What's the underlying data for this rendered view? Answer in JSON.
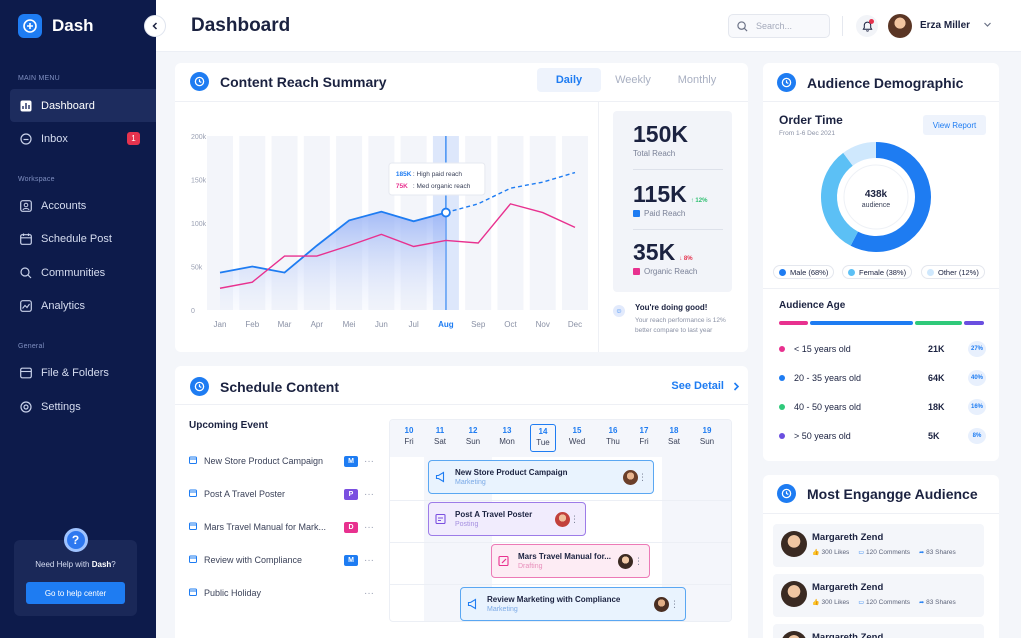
{
  "app": {
    "name": "Dash"
  },
  "sidebar": {
    "sections": [
      "MAIN MENU",
      "Workspace",
      "General"
    ],
    "items": [
      {
        "label": "Dashboard",
        "icon": "dashboard-icon",
        "active": true
      },
      {
        "label": "Inbox",
        "icon": "inbox-icon",
        "badge": "1"
      },
      {
        "label": "Accounts",
        "icon": "accounts-icon"
      },
      {
        "label": "Schedule Post",
        "icon": "calendar-icon"
      },
      {
        "label": "Communities",
        "icon": "search-icon"
      },
      {
        "label": "Analytics",
        "icon": "analytics-icon"
      },
      {
        "label": "File & Folders",
        "icon": "folder-icon"
      },
      {
        "label": "Settings",
        "icon": "settings-icon"
      }
    ],
    "help": {
      "text_prefix": "Need Help with ",
      "text_brand": "Dash",
      "text_suffix": "?",
      "button": "Go to help center"
    }
  },
  "header": {
    "title": "Dashboard",
    "search_placeholder": "Search...",
    "user_name": "Erza Miller"
  },
  "reach": {
    "title": "Content Reach Summary",
    "tabs": [
      "Daily",
      "Weekly",
      "Monthly"
    ],
    "active_tab": "Daily",
    "stats": [
      {
        "value": "150K",
        "label": "Total Reach"
      },
      {
        "value": "115K",
        "change": "12%",
        "direction": "up",
        "label": "Paid Reach",
        "color": "#1e7cf2"
      },
      {
        "value": "35K",
        "change": "8%",
        "direction": "down",
        "label": "Organic Reach",
        "color": "#e8318f"
      }
    ],
    "message": {
      "title": "You're doing good!",
      "text": "Your reach performance is 12% better compare to last year"
    },
    "tooltip": [
      {
        "value": "185K",
        "label": ": High paid reach"
      },
      {
        "value": "75K",
        "label": ": Med organic reach"
      }
    ]
  },
  "chart_data": {
    "type": "line",
    "x": [
      "Jan",
      "Feb",
      "Mar",
      "Apr",
      "Mei",
      "Jun",
      "Jul",
      "Aug",
      "Sep",
      "Oct",
      "Nov",
      "Dec"
    ],
    "ylim": [
      0,
      200
    ],
    "yticks": [
      "0",
      "50k",
      "100k",
      "150k",
      "200k"
    ],
    "highlight": "Aug",
    "series": [
      {
        "values": [
          43,
          50,
          43,
          74,
          103,
          113,
          102,
          112,
          122,
          140,
          147,
          158
        ],
        "projected_from": 7,
        "color": "#1e7cf2"
      },
      {
        "values": [
          25,
          32,
          62,
          62,
          74,
          87,
          73,
          80,
          77,
          122,
          112,
          95
        ],
        "color": "#e8318f"
      }
    ]
  },
  "schedule": {
    "title": "Schedule Content",
    "see_detail": "See Detail",
    "upcoming_title": "Upcoming Event",
    "events": [
      {
        "name": "New Store Product Campaign",
        "badge": "M",
        "color": "#1e7cf2"
      },
      {
        "name": "Post A Travel Poster",
        "badge": "P",
        "color": "#7a4fe0"
      },
      {
        "name": "Mars Travel Manual for Mark...",
        "badge": "D",
        "color": "#e8318f"
      },
      {
        "name": "Review with Compliance",
        "badge": "M",
        "color": "#1e7cf2"
      },
      {
        "name": "Public Holiday",
        "badge": "",
        "color": ""
      }
    ],
    "days": [
      {
        "n": "10",
        "d": "Fri"
      },
      {
        "n": "11",
        "d": "Sat"
      },
      {
        "n": "12",
        "d": "Sun"
      },
      {
        "n": "13",
        "d": "Mon"
      },
      {
        "n": "14",
        "d": "Tue",
        "today": true
      },
      {
        "n": "15",
        "d": "Wed"
      },
      {
        "n": "16",
        "d": "Thu"
      },
      {
        "n": "17",
        "d": "Fri"
      },
      {
        "n": "18",
        "d": "Sat"
      },
      {
        "n": "19",
        "d": "Sun"
      }
    ],
    "cards": [
      {
        "title": "New Store Product Campaign",
        "sub": "Marketing"
      },
      {
        "title": "Post A Travel Poster",
        "sub": "Posting"
      },
      {
        "title": "Mars Travel Manual for...",
        "sub": "Drafting"
      },
      {
        "title": "Review Marketing with Compliance",
        "sub": "Marketing"
      }
    ]
  },
  "demographic": {
    "title": "Audience Demographic",
    "order_time": "Order Time",
    "range": "From 1-6 Dec 2021",
    "view_report": "View Report",
    "donut": {
      "value": "438k",
      "label": "audience",
      "segments": [
        {
          "name": "Male",
          "pct": 68,
          "color": "#1e7cf2"
        },
        {
          "name": "Female",
          "pct": 38,
          "color": "#5cc0f5"
        },
        {
          "name": "Other",
          "pct": 12,
          "color": "#cfe8fd"
        }
      ]
    },
    "legend": [
      "Male (68%)",
      "Female (38%)",
      "Other (12%)"
    ],
    "age_title": "Audience Age",
    "ages": [
      {
        "label": "< 15 years old",
        "value": "21K",
        "pct": "27%",
        "color": "#e8318f"
      },
      {
        "label": "20 - 35 years old",
        "value": "64K",
        "pct": "40%",
        "color": "#1e7cf2"
      },
      {
        "label": "40 - 50 years old",
        "value": "18K",
        "pct": "16%",
        "color": "#2fc97a"
      },
      {
        "label": "> 50 years old",
        "value": "5K",
        "pct": "8%",
        "color": "#6a4fe0"
      }
    ]
  },
  "engage": {
    "title": "Most Engangge Audience",
    "people": [
      {
        "name": "Margareth Zend",
        "likes": "300 Likes",
        "comments": "120 Comments",
        "shares": "83 Shares"
      },
      {
        "name": "Margareth Zend",
        "likes": "300 Likes",
        "comments": "120 Comments",
        "shares": "83 Shares"
      },
      {
        "name": "Margareth Zend"
      }
    ]
  }
}
